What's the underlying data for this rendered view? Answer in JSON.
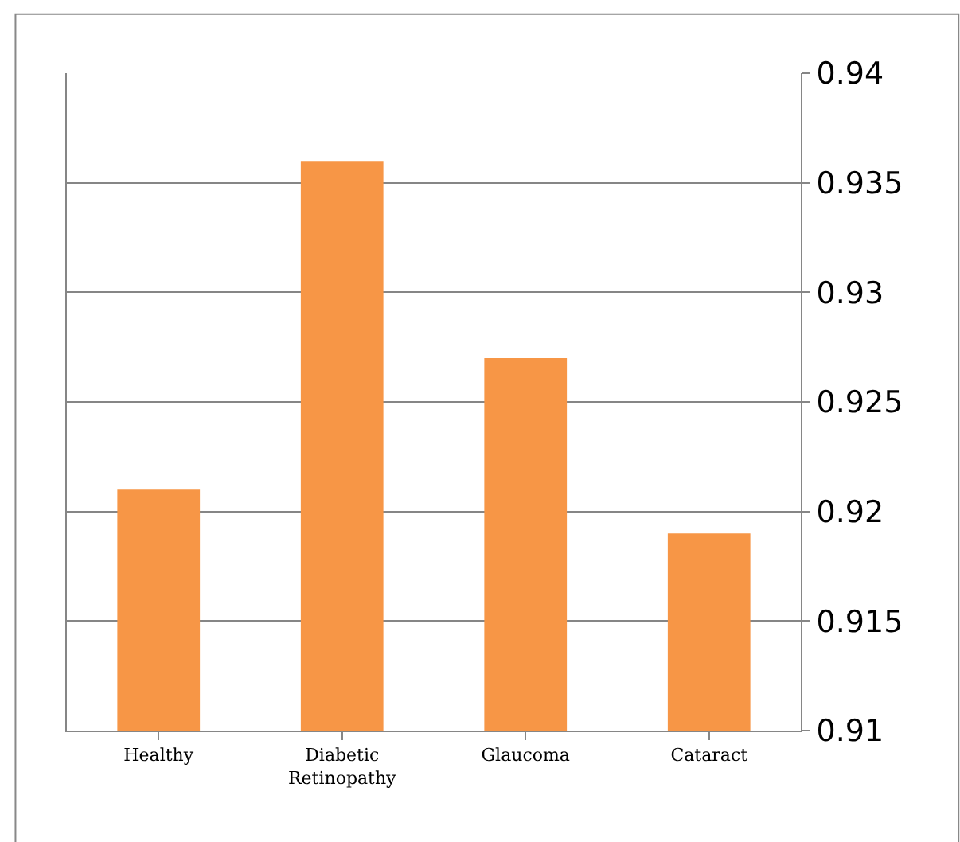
{
  "chart_data": {
    "type": "bar",
    "categories": [
      "Healthy",
      "Diabetic Retinopathy",
      "Glaucoma",
      "Cataract"
    ],
    "values": [
      0.921,
      0.936,
      0.927,
      0.919
    ],
    "color": "#f79646",
    "ylim": [
      0.91,
      0.94
    ],
    "yticks": [
      0.91,
      0.915,
      0.92,
      0.925,
      0.93,
      0.935,
      0.94
    ],
    "grid": "y"
  }
}
